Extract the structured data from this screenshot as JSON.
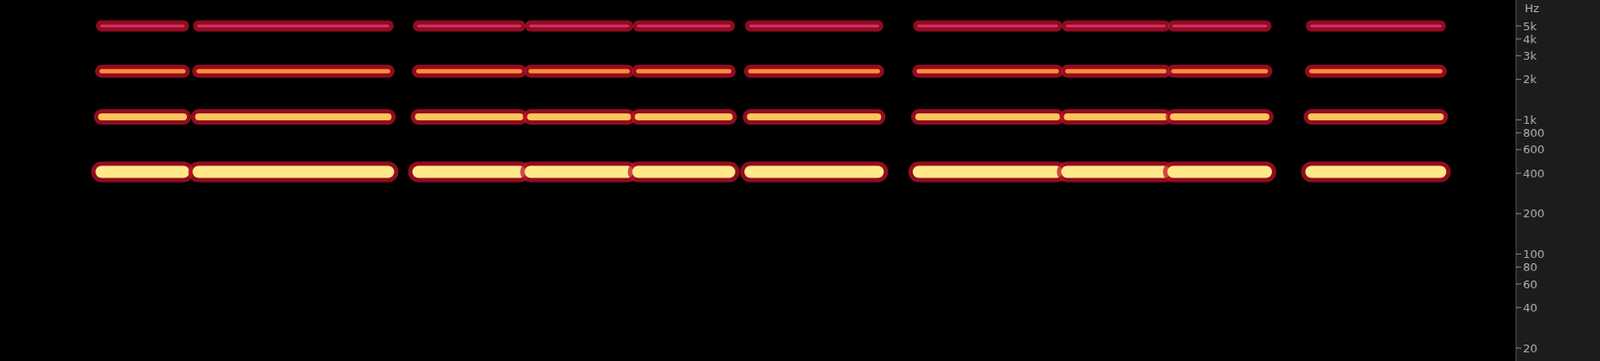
{
  "chart_data": {
    "type": "spectrogram",
    "ylabel": "Hz",
    "log": "y",
    "grid": false,
    "tick_labels": "y",
    "xlim": [
      0,
      100
    ],
    "ylim": [
      16,
      7800
    ],
    "yticks": [
      {
        "value": 5000,
        "label": "5k"
      },
      {
        "value": 4000,
        "label": "4k"
      },
      {
        "value": 3000,
        "label": "3k"
      },
      {
        "value": 2000,
        "label": "2k"
      },
      {
        "value": 1000,
        "label": "1k"
      },
      800,
      600,
      400,
      200,
      100,
      80,
      60,
      40,
      20
    ],
    "harmonics": [
      {
        "frequency": 410,
        "color": "#ffe98a"
      },
      {
        "frequency": 1050,
        "color": "#ffc45a"
      },
      {
        "frequency": 2300,
        "color": "#ff8a3a"
      },
      {
        "frequency": 5000,
        "color": "#d8306a"
      }
    ],
    "segments": [
      [
        6.7,
        12.1
      ],
      [
        13.1,
        25.6
      ],
      [
        27.6,
        34.3
      ],
      [
        35.0,
        41.4
      ],
      [
        42.1,
        48.1
      ],
      [
        49.5,
        57.9
      ],
      [
        60.6,
        69.7
      ],
      [
        70.4,
        76.8
      ],
      [
        77.4,
        83.5
      ],
      [
        86.5,
        95.0
      ]
    ]
  }
}
